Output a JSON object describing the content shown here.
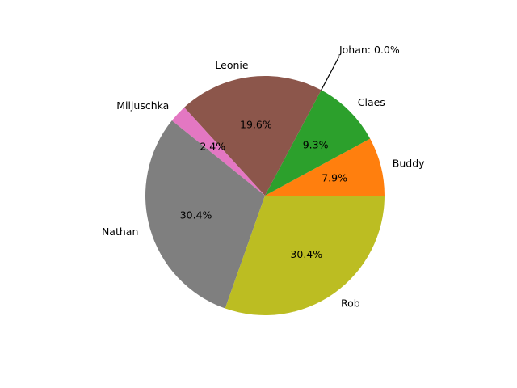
{
  "chart_data": {
    "type": "pie",
    "title": "",
    "start_angle_deg": 0,
    "direction": "counterclockwise",
    "slices": [
      {
        "label": "Buddy",
        "value": 7.9,
        "pct_label": "7.9%",
        "color": "#ff7f0e"
      },
      {
        "label": "Claes",
        "value": 9.3,
        "pct_label": "9.3%",
        "color": "#2ca02c"
      },
      {
        "label": "Johan",
        "value": 0.0,
        "pct_label": "0.0%",
        "color": "#d62728",
        "annotation": "Johan: 0.0%"
      },
      {
        "label": "Leonie",
        "value": 19.6,
        "pct_label": "19.6%",
        "color": "#8c564b"
      },
      {
        "label": "Miljuschka",
        "value": 2.4,
        "pct_label": "2.4%",
        "color": "#e377c2"
      },
      {
        "label": "Nathan",
        "value": 30.4,
        "pct_label": "30.4%",
        "color": "#7f7f7f"
      },
      {
        "label": "Rob",
        "value": 30.4,
        "pct_label": "30.4%",
        "color": "#bcbd22"
      }
    ]
  }
}
